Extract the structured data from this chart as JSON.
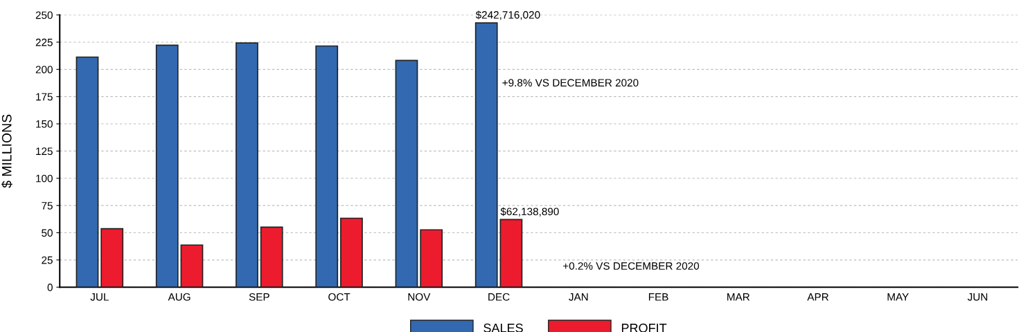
{
  "chart_data": {
    "type": "bar",
    "ylabel": "$ MILLIONS",
    "categories": [
      "JUL",
      "AUG",
      "SEP",
      "OCT",
      "NOV",
      "DEC",
      "JAN",
      "FEB",
      "MAR",
      "APR",
      "MAY",
      "JUN"
    ],
    "series": [
      {
        "name": "SALES",
        "color": "#3369b0",
        "values": [
          211.3,
          222.2,
          224.3,
          221.5,
          208.2,
          242.7,
          null,
          null,
          null,
          null,
          null,
          null
        ]
      },
      {
        "name": "PROFIT",
        "color": "#ec1c2e",
        "values": [
          53.7,
          38.7,
          55.2,
          63.3,
          52.7,
          62.1,
          null,
          null,
          null,
          null,
          null,
          null
        ]
      }
    ],
    "ylim": [
      0,
      250
    ],
    "yticks": [
      0,
      25,
      50,
      75,
      100,
      125,
      150,
      175,
      200,
      225,
      250
    ],
    "grid": "y",
    "legend": "bottom",
    "annotations": [
      {
        "text": "$242,716,020",
        "x": "DEC",
        "y": 242.7
      },
      {
        "text": "$62,138,890",
        "x": "DEC",
        "y": 62.1
      },
      "+9.8% VS DECEMBER 2020",
      "+0.2% VS DECEMBER 2020"
    ]
  }
}
